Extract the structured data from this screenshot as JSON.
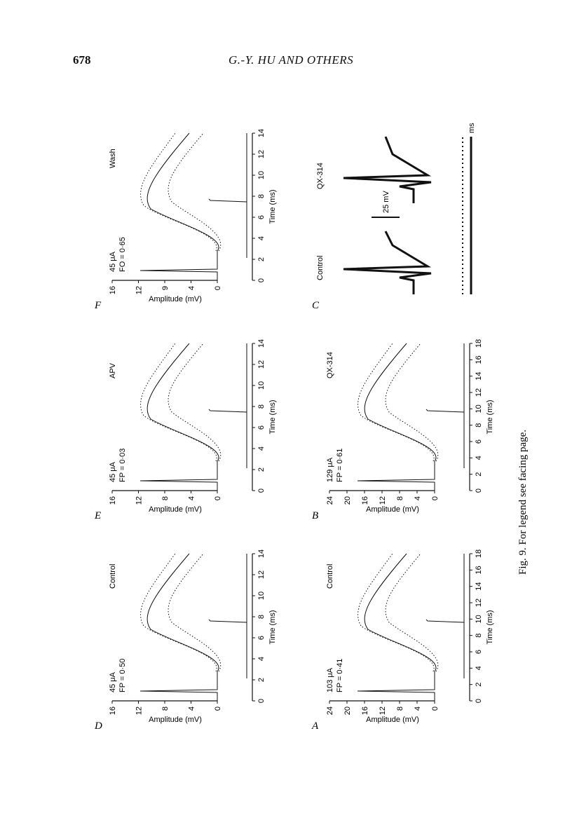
{
  "header": {
    "page_number": "678",
    "running_head": "G.-Y. HU AND OTHERS"
  },
  "figure": {
    "caption": "Fig. 9. For legend see facing page.",
    "y_axis_label": "Amplitude (mV)",
    "x_axis_label": "Time (ms)",
    "panels": [
      {
        "letter": "A",
        "condition": "Control",
        "stim": "103 μA",
        "ratio": "FP = 0·41",
        "yticks": [
          "24",
          "20",
          "16",
          "12",
          "8",
          "4",
          "0"
        ],
        "xticks": [
          "0",
          "2",
          "4",
          "6",
          "8",
          "10",
          "12",
          "14",
          "16",
          "18"
        ]
      },
      {
        "letter": "B",
        "condition": "QX-314",
        "stim": "129 μA",
        "ratio": "FP = 0·61",
        "yticks": [
          "24",
          "20",
          "16",
          "12",
          "8",
          "4",
          "0"
        ],
        "xticks": [
          "0",
          "2",
          "4",
          "6",
          "8",
          "10",
          "12",
          "14",
          "16",
          "18"
        ]
      },
      {
        "letter": "C",
        "condition_left": "Control",
        "condition_right": "QX-314",
        "scale_label": "25 mV",
        "time_unit": "ms"
      },
      {
        "letter": "D",
        "condition": "Control",
        "stim": "45 μA",
        "ratio": "FP = 0·50",
        "yticks": [
          "16",
          "12",
          "8",
          "4",
          "0"
        ],
        "xticks": [
          "0",
          "2",
          "4",
          "6",
          "8",
          "10",
          "12",
          "14"
        ]
      },
      {
        "letter": "E",
        "condition": "APV",
        "stim": "45 μA",
        "ratio": "FP = 0·03",
        "yticks": [
          "16",
          "12",
          "8",
          "4",
          "0"
        ],
        "xticks": [
          "0",
          "2",
          "4",
          "6",
          "8",
          "10",
          "12",
          "14"
        ]
      },
      {
        "letter": "F",
        "condition": "Wash",
        "stim": "45 μA",
        "ratio": "FO = 0·65",
        "yticks": [
          "16",
          "12",
          "9",
          "4",
          "0"
        ],
        "xticks": [
          "0",
          "2",
          "4",
          "6",
          "8",
          "10",
          "12",
          "14"
        ]
      }
    ]
  }
}
